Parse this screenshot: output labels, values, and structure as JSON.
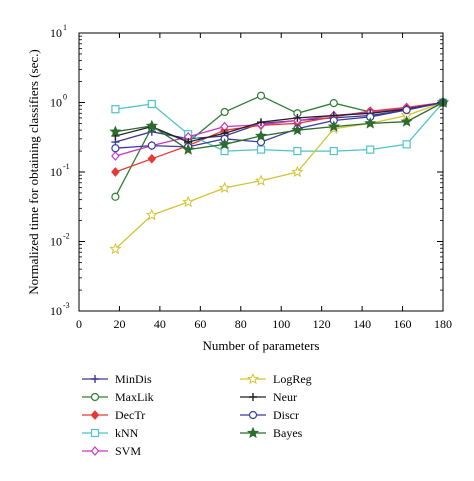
{
  "chart_data": {
    "type": "line",
    "xlabel": "Number of parameters",
    "ylabel": "Normalized time for obtaining classifiers (sec.)",
    "xlim": [
      0,
      180
    ],
    "ylim": [
      0.001,
      10
    ],
    "yscale": "log",
    "xticks": [
      "0",
      "20",
      "40",
      "60",
      "80",
      "100",
      "120",
      "140",
      "160",
      "180"
    ],
    "yticks": [
      {
        "base": "10",
        "exp": "-3"
      },
      {
        "base": "10",
        "exp": "-2"
      },
      {
        "base": "10",
        "exp": "-1"
      },
      {
        "base": "10",
        "exp": "0"
      },
      {
        "base": "10",
        "exp": "1"
      }
    ],
    "grid": false,
    "legend_position": "below",
    "series": [
      {
        "name": "MinDis",
        "color": "#3c3a8e",
        "marker": "plus",
        "x": [
          18,
          36,
          54,
          72,
          90,
          108,
          126,
          144,
          162,
          180
        ],
        "y": [
          0.27,
          0.38,
          0.3,
          0.33,
          0.5,
          0.55,
          0.6,
          0.65,
          0.78,
          1.0
        ]
      },
      {
        "name": "MaxLik",
        "color": "#2e7d32",
        "marker": "circle",
        "x": [
          18,
          36,
          54,
          72,
          90,
          108,
          126,
          144,
          162,
          180
        ],
        "y": [
          0.044,
          0.44,
          0.27,
          0.73,
          1.25,
          0.7,
          0.98,
          0.73,
          0.82,
          1.0
        ]
      },
      {
        "name": "DecTr",
        "color": "#e53935",
        "marker": "diamond-filled",
        "x": [
          18,
          36,
          54,
          72,
          90,
          108,
          126,
          144,
          162,
          180
        ],
        "y": [
          0.1,
          0.155,
          0.24,
          0.4,
          0.47,
          0.5,
          0.62,
          0.75,
          0.85,
          1.0
        ]
      },
      {
        "name": "kNN",
        "color": "#4fc3c8",
        "marker": "square",
        "x": [
          18,
          36,
          54,
          72,
          90,
          108,
          126,
          144,
          162,
          180
        ],
        "y": [
          0.8,
          0.95,
          0.35,
          0.2,
          0.21,
          0.2,
          0.2,
          0.21,
          0.25,
          1.0
        ]
      },
      {
        "name": "SVM",
        "color": "#c837c0",
        "marker": "diamond",
        "x": [
          18,
          36,
          54,
          72,
          90,
          108,
          126,
          144,
          162,
          180
        ],
        "y": [
          0.17,
          0.24,
          0.32,
          0.45,
          0.48,
          0.55,
          0.65,
          0.72,
          0.82,
          1.0
        ]
      },
      {
        "name": "LogReg",
        "color": "#d4c435",
        "marker": "star",
        "x": [
          18,
          36,
          54,
          72,
          90,
          108,
          126,
          144,
          162,
          180
        ],
        "y": [
          0.0078,
          0.024,
          0.037,
          0.059,
          0.075,
          0.1,
          0.42,
          0.5,
          0.65,
          1.0
        ]
      },
      {
        "name": "Neur",
        "color": "#222222",
        "marker": "plus",
        "x": [
          18,
          36,
          54,
          72,
          90,
          108,
          126,
          144,
          162,
          180
        ],
        "y": [
          0.33,
          0.45,
          0.27,
          0.36,
          0.52,
          0.6,
          0.65,
          0.7,
          0.8,
          1.0
        ]
      },
      {
        "name": "Discr",
        "color": "#3a3aa0",
        "marker": "circle",
        "x": [
          18,
          36,
          54,
          72,
          90,
          108,
          126,
          144,
          162,
          180
        ],
        "y": [
          0.22,
          0.24,
          0.23,
          0.3,
          0.27,
          0.42,
          0.55,
          0.62,
          0.78,
          1.0
        ]
      },
      {
        "name": "Bayes",
        "color": "#2e6b2e",
        "marker": "star-filled",
        "x": [
          18,
          36,
          54,
          72,
          90,
          108,
          126,
          144,
          162,
          180
        ],
        "y": [
          0.38,
          0.46,
          0.21,
          0.25,
          0.33,
          0.4,
          0.45,
          0.5,
          0.53,
          1.0
        ]
      }
    ]
  }
}
